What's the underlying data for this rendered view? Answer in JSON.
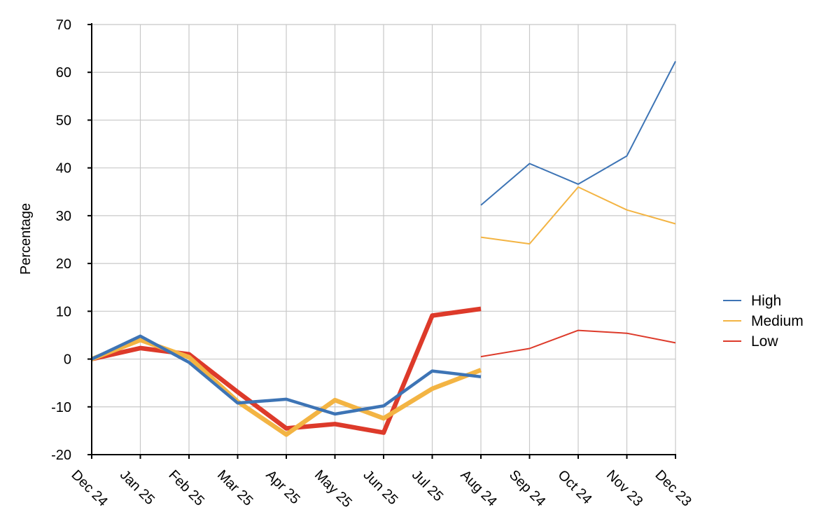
{
  "chart_data": {
    "type": "line",
    "title": "",
    "ylabel": "Percentage",
    "xlabel": "",
    "ylim": [
      -20,
      70
    ],
    "yticks": [
      -20,
      -10,
      0,
      10,
      20,
      30,
      40,
      50,
      60,
      70
    ],
    "categories": [
      "Dec 24",
      "Jan 25",
      "Feb 25",
      "Mar 25",
      "Apr 25",
      "May 25",
      "Jun 25",
      "Jul 25",
      "Aug 24",
      "Sep 24",
      "Oct 24",
      "Nov 23",
      "Dec 23"
    ],
    "grid": true,
    "legend_position": "right",
    "segments": [
      {
        "categories": [
          "Dec 24",
          "Jan 25",
          "Feb 25",
          "Mar 25",
          "Apr 25",
          "May 25",
          "Jun 25",
          "Jul 25",
          "Aug 24"
        ],
        "line_style": "thick"
      },
      {
        "categories": [
          "Aug 24",
          "Sep 24",
          "Oct 24",
          "Nov 23",
          "Dec 23"
        ],
        "line_style": "thin"
      }
    ],
    "series": [
      {
        "name": "High",
        "color": "#3d74b5",
        "segment_values": [
          [
            0,
            4.8,
            -0.7,
            -9.2,
            -8.4,
            -11.5,
            -9.8,
            -2.5,
            -3.7
          ],
          [
            32.2,
            40.9,
            36.6,
            42.5,
            62.3
          ]
        ]
      },
      {
        "name": "Medium",
        "color": "#f3b443",
        "segment_values": [
          [
            0,
            4.0,
            0.4,
            -8.9,
            -15.8,
            -8.6,
            -12.4,
            -6.2,
            -2.3
          ],
          [
            25.5,
            24.1,
            36.0,
            31.2,
            28.3
          ]
        ]
      },
      {
        "name": "Low",
        "color": "#dd3a2a",
        "segment_values": [
          [
            0,
            2.3,
            1.0,
            -6.9,
            -14.5,
            -13.6,
            -15.4,
            9.1,
            10.5
          ],
          [
            0.5,
            2.2,
            6.0,
            5.4,
            3.4
          ]
        ]
      }
    ]
  }
}
